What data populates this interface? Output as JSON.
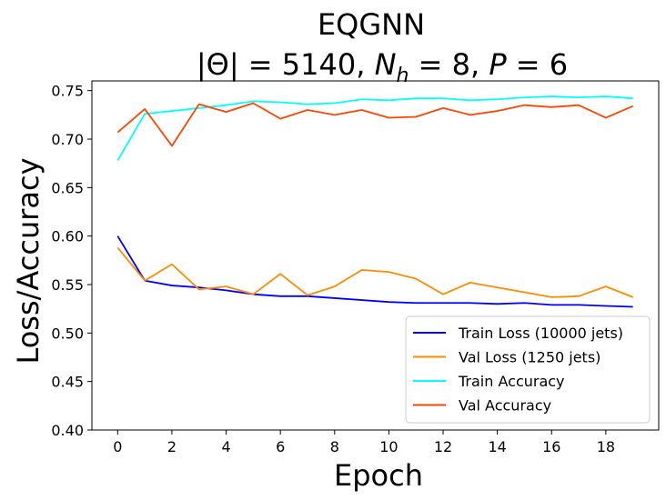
{
  "chart_data": {
    "type": "line",
    "title_line1": "EQGNN",
    "title_line2": {
      "theta_lhs": "|Θ|",
      "theta_eq": " = 5140,  ",
      "nh_base": "N",
      "nh_sub": "h",
      "nh_eq": " = 8,  ",
      "p_lhs": "P",
      "p_eq": " = 6"
    },
    "xlabel": "Epoch",
    "ylabel": "Loss/Accuracy",
    "xlim": [
      -0.95,
      19.95
    ],
    "ylim": [
      0.4,
      0.76
    ],
    "x_ticks": [
      0,
      2,
      4,
      6,
      8,
      10,
      12,
      14,
      16,
      18
    ],
    "y_ticks": [
      0.4,
      0.45,
      0.5,
      0.55,
      0.6,
      0.65,
      0.7,
      0.75
    ],
    "y_tick_labels": [
      "0.40",
      "0.45",
      "0.50",
      "0.55",
      "0.60",
      "0.65",
      "0.70",
      "0.75"
    ],
    "grid": false,
    "legend_position": "lower right",
    "x": [
      0,
      1,
      2,
      3,
      4,
      5,
      6,
      7,
      8,
      9,
      10,
      11,
      12,
      13,
      14,
      15,
      16,
      17,
      18,
      19
    ],
    "series": [
      {
        "name": "Train Loss (10000 jets)",
        "color": "#0000ff",
        "values": [
          0.6,
          0.554,
          0.549,
          0.547,
          0.544,
          0.54,
          0.538,
          0.538,
          0.536,
          0.534,
          0.532,
          0.531,
          0.531,
          0.531,
          0.53,
          0.531,
          0.529,
          0.529,
          0.528,
          0.527
        ]
      },
      {
        "name": "Val Loss (1250 jets)",
        "color": "#ff8c00",
        "values": [
          0.588,
          0.554,
          0.571,
          0.545,
          0.548,
          0.54,
          0.561,
          0.539,
          0.548,
          0.565,
          0.563,
          0.556,
          0.54,
          0.552,
          0.547,
          0.542,
          0.537,
          0.538,
          0.548,
          0.537
        ]
      },
      {
        "name": "Train Accuracy",
        "color": "#00ffff",
        "values": [
          0.678,
          0.726,
          0.729,
          0.732,
          0.735,
          0.739,
          0.738,
          0.736,
          0.737,
          0.741,
          0.74,
          0.742,
          0.742,
          0.74,
          0.741,
          0.743,
          0.744,
          0.743,
          0.744,
          0.742
        ]
      },
      {
        "name": "Val Accuracy",
        "color": "#ff4500",
        "values": [
          0.707,
          0.731,
          0.693,
          0.736,
          0.728,
          0.737,
          0.721,
          0.73,
          0.725,
          0.73,
          0.722,
          0.723,
          0.732,
          0.725,
          0.729,
          0.735,
          0.733,
          0.735,
          0.722,
          0.734
        ]
      }
    ]
  }
}
